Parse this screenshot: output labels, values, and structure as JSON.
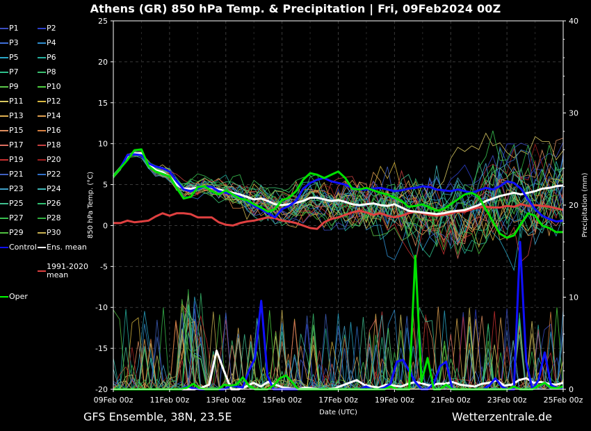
{
  "title": "Athens  (GR)  850 hPa Temp. & Precipitation | Fri, 09Feb2024 00Z",
  "footer_left": "GFS Ensemble, 38N, 23.5E",
  "footer_right": "Wetterzentrale.de",
  "legend": [
    {
      "label": "P1",
      "color": "#3b4cc0"
    },
    {
      "label": "P2",
      "color": "#2c3fc8"
    },
    {
      "label": "P3",
      "color": "#3f6fd8"
    },
    {
      "label": "P4",
      "color": "#2f8fd0"
    },
    {
      "label": "P5",
      "color": "#2aa7c8"
    },
    {
      "label": "P6",
      "color": "#26b1a0"
    },
    {
      "label": "P7",
      "color": "#2fc08c"
    },
    {
      "label": "P8",
      "color": "#3ac070"
    },
    {
      "label": "P9",
      "color": "#5cc84a"
    },
    {
      "label": "P10",
      "color": "#4fd040"
    },
    {
      "label": "P11",
      "color": "#d8c860"
    },
    {
      "label": "P12",
      "color": "#d8b840"
    },
    {
      "label": "P13",
      "color": "#e0b050"
    },
    {
      "label": "P14",
      "color": "#e0a050"
    },
    {
      "label": "P15",
      "color": "#e09060"
    },
    {
      "label": "P16",
      "color": "#d88040"
    },
    {
      "label": "P17",
      "color": "#e07060"
    },
    {
      "label": "P18",
      "color": "#c84040"
    },
    {
      "label": "P19",
      "color": "#c83030"
    },
    {
      "label": "P20",
      "color": "#a02020"
    },
    {
      "label": "P21",
      "color": "#4060c0"
    },
    {
      "label": "P22",
      "color": "#3070c8"
    },
    {
      "label": "P23",
      "color": "#40a0c8"
    },
    {
      "label": "P24",
      "color": "#40b8b8"
    },
    {
      "label": "P25",
      "color": "#40c090"
    },
    {
      "label": "P26",
      "color": "#30c070"
    },
    {
      "label": "P27",
      "color": "#38c050"
    },
    {
      "label": "P28",
      "color": "#30b040"
    },
    {
      "label": "P29",
      "color": "#50c040"
    },
    {
      "label": "P30",
      "color": "#c8b050"
    },
    {
      "label": "Control",
      "color": "#1010ff"
    },
    {
      "label": "Ens. mean",
      "color": "#ffffff"
    },
    {
      "label": "1991-2020 mean",
      "color": "#e04040"
    },
    {
      "label": "Oper",
      "color": "#00ff00"
    }
  ],
  "chart_data": {
    "type": "line",
    "xlabel": "Date (UTC)",
    "ylabel": "850 hPa Temp. (°C)",
    "y2label": "Precipitation (mm)",
    "ylim": [
      -20,
      25
    ],
    "y2lim": [
      0,
      40
    ],
    "yticks": [
      "25",
      "20",
      "15",
      "10",
      "5",
      "0",
      "-5",
      "-10",
      "-15",
      "-20"
    ],
    "y2ticks": [
      "40",
      "30",
      "20",
      "10",
      "0"
    ],
    "xticks": [
      "09Feb 00z",
      "11Feb 00z",
      "13Feb 00z",
      "15Feb 00z",
      "17Feb 00z",
      "19Feb 00z",
      "21Feb 00z",
      "23Feb 00z",
      "25Feb 00z"
    ],
    "xstep_hours": 6,
    "ens_mean": [
      6,
      7,
      8.5,
      8.8,
      8.8,
      7.5,
      6.8,
      6.5,
      6,
      5,
      4.5,
      4.5,
      4.6,
      4.8,
      4.6,
      4.4,
      4.2,
      4.0,
      3.8,
      3.5,
      3.2,
      3.3,
      3.0,
      2.6,
      2.5,
      2.6,
      2.8,
      3.0,
      3.4,
      3.4,
      3.2,
      3.0,
      3.1,
      2.9,
      2.6,
      2.5,
      2.6,
      2.7,
      2.5,
      2.4,
      2.6,
      2.2,
      1.8,
      1.7,
      1.6,
      1.5,
      1.4,
      1.5,
      1.7,
      1.8,
      1.9,
      2.2,
      2.5,
      3.0,
      3.3,
      3.6,
      3.8,
      4.0,
      3.8,
      4.0,
      4.2,
      4.5,
      4.6,
      4.8,
      4.9
    ],
    "control": [
      6,
      7,
      8.6,
      8.7,
      8.6,
      7.6,
      7.2,
      7.0,
      6.6,
      5.4,
      4.4,
      4.2,
      4.5,
      4.8,
      4.7,
      4.2,
      4.0,
      3.8,
      3.5,
      3.0,
      2.4,
      2.0,
      1.5,
      1.0,
      2.0,
      2.4,
      3.0,
      4.5,
      5.2,
      5.6,
      5.8,
      5.4,
      5.2,
      5.0,
      4.6,
      4.4,
      4.4,
      4.5,
      4.6,
      4.4,
      4.2,
      4.3,
      4.5,
      4.6,
      4.8,
      4.7,
      4.4,
      4.3,
      4.2,
      4.4,
      4.2,
      4.0,
      4.3,
      4.6,
      4.4,
      4.8,
      5.4,
      5.2,
      4.5,
      3.2,
      2.0,
      1.2,
      0.8,
      0.5,
      0.6
    ],
    "oper": [
      6,
      7,
      8.0,
      9.2,
      9.3,
      7.3,
      6.6,
      6.3,
      6.0,
      4.6,
      3.3,
      3.5,
      4.7,
      4.8,
      4.2,
      3.8,
      4.3,
      3.8,
      3.3,
      3.1,
      2.6,
      2.2,
      1.7,
      2.0,
      3.1,
      3.4,
      4.2,
      5.6,
      6.4,
      6.2,
      5.8,
      6.2,
      6.6,
      5.8,
      4.5,
      4.4,
      4.6,
      4.3,
      4.0,
      3.8,
      3.4,
      3.0,
      2.3,
      2.4,
      2.6,
      2.2,
      1.8,
      2.0,
      2.6,
      3.2,
      3.8,
      4.0,
      3.5,
      2.0,
      0.5,
      -1.0,
      -1.5,
      -1.2,
      0.2,
      1.5,
      1.2,
      0.0,
      -0.3,
      -0.8,
      -0.8
    ],
    "clim_mean": [
      0.3,
      0.3,
      0.6,
      0.4,
      0.5,
      0.6,
      1.1,
      1.5,
      1.2,
      1.5,
      1.5,
      1.4,
      1.0,
      1.0,
      1.0,
      0.4,
      0.1,
      0.0,
      0.3,
      0.5,
      0.6,
      0.8,
      1.0,
      0.9,
      0.6,
      0.5,
      0.3,
      0.0,
      -0.3,
      -0.4,
      0.4,
      0.8,
      1.0,
      1.3,
      1.6,
      1.8,
      1.6,
      1.3,
      1.5,
      1.2,
      1.0,
      1.2,
      1.5,
      1.7,
      1.5,
      1.3,
      1.2,
      1.3,
      1.5,
      1.7,
      1.7,
      2.0,
      2.2,
      2.3,
      2.2,
      2.2,
      2.4,
      2.3,
      2.6,
      2.4,
      2.5,
      2.4,
      2.3,
      2.1,
      1.9
    ],
    "precip_control": [
      0,
      0,
      0,
      0,
      0,
      0,
      0,
      0,
      0,
      0,
      0,
      0,
      0.3,
      0.1,
      0,
      0,
      0,
      0,
      0,
      0.4,
      0.3,
      0.2,
      2.0,
      3.4,
      9.6,
      1.5,
      0,
      0,
      0,
      0,
      0,
      0,
      0,
      0,
      0,
      0,
      0,
      0,
      0,
      0,
      0,
      0.3,
      0,
      0,
      0.2,
      0.6,
      3.0,
      3.2,
      2.0,
      0.8,
      0,
      0,
      0.6,
      2.5,
      3.0,
      0,
      0,
      0,
      0,
      0,
      0,
      0.4,
      1.2,
      0.3,
      0,
      0,
      16.0,
      3.0,
      0,
      1.0,
      4.0,
      0.5,
      0.1,
      0.2
    ],
    "precip_oper": [
      0,
      0,
      0,
      0,
      0,
      0,
      0,
      0,
      0,
      0,
      0,
      0,
      0.2,
      0.6,
      0.1,
      0,
      0,
      0,
      0.5,
      0.4,
      0.5,
      1.3,
      0.4,
      0,
      0,
      0,
      0.4,
      1.2,
      1.5,
      0.8,
      0,
      0,
      0,
      0,
      0,
      0,
      0,
      0,
      0,
      0,
      0,
      0,
      0,
      0,
      0,
      0.3,
      0,
      0,
      0,
      14.5,
      0.8,
      3.4,
      0,
      0,
      0.5,
      0,
      0,
      0,
      0,
      0,
      0,
      0,
      0,
      0,
      0,
      0.3,
      0,
      0,
      0,
      0.4,
      0.7,
      0.2,
      0.1,
      0.3
    ],
    "precip_ens_mean": [
      0,
      0,
      0,
      0,
      0,
      0,
      0,
      0,
      0,
      0,
      0,
      0,
      0.2,
      0.5,
      4.2,
      2.0,
      0,
      0,
      0.3,
      0.7,
      0.3,
      0.8,
      0.5,
      0.2,
      0.1,
      0,
      0.2,
      0.1,
      0,
      0,
      0.1,
      0.4,
      0.7,
      1.0,
      0.5,
      0.3,
      0.2,
      0.5,
      0.4,
      0.3,
      0.6,
      0.8,
      0.6,
      0.4,
      0.6,
      0.6,
      0.8,
      0.5,
      0.4,
      0.3,
      0.6,
      0.7,
      1.0,
      0.4,
      0.5,
      1.0,
      1.2,
      0.7,
      0.8,
      0.6,
      0.5,
      0.7
    ]
  }
}
